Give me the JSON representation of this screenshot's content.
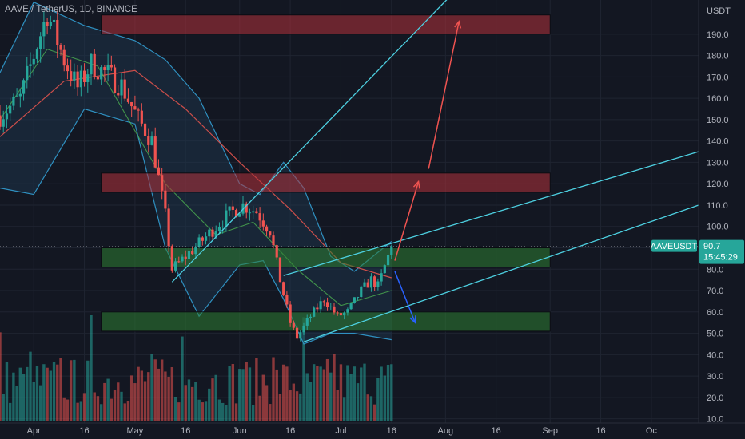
{
  "header": {
    "symbol_title": "AAVE / TetherUS, 1D, BINANCE",
    "currency": "USDT"
  },
  "price_tag": {
    "symbol": "AAVEUSDT",
    "price": "90.7",
    "countdown": "15:45:29"
  },
  "colors": {
    "background": "#131722",
    "up": "#26a69a",
    "down": "#ef5350",
    "bb_band": "#2f90c0",
    "bb_fill": "#1e3a52",
    "ma_red": "#e0534c",
    "ma_green": "#4caf50",
    "zone_red": "#b2313a",
    "zone_green": "#2e7d32",
    "trendline": "#4dd0e1",
    "arrow_up": "#ef5350",
    "arrow_down": "#2962ff",
    "price_tag_bg": "#26a69a"
  },
  "chart_data": {
    "type": "candlestick",
    "title": "AAVE / TetherUS, 1D, BINANCE",
    "ylabel": "USDT",
    "ylim": [
      8,
      206
    ],
    "y_ticks": [
      10.0,
      20.0,
      30.0,
      40.0,
      50.0,
      60.0,
      70.0,
      80.0,
      90.0,
      100.0,
      110.0,
      120.0,
      130.0,
      140.0,
      150.0,
      160.0,
      170.0,
      180.0,
      190.0
    ],
    "y_tick_labels": [
      "10.0",
      "20.0",
      "30.0",
      "40.0",
      "50.0",
      "60.0",
      "70.0",
      "80.0",
      "90.0",
      "100.0",
      "110.0",
      "120.0",
      "130.0",
      "140.0",
      "150.0",
      "160.0",
      "170.0",
      "180.0",
      "190.0"
    ],
    "x_start": "2022-03-22",
    "x_end": "2022-10-15",
    "x_ticks": [
      {
        "label": "Apr",
        "date": "2022-04-01"
      },
      {
        "label": "16",
        "date": "2022-04-16"
      },
      {
        "label": "May",
        "date": "2022-05-01"
      },
      {
        "label": "16",
        "date": "2022-05-16"
      },
      {
        "label": "Jun",
        "date": "2022-06-01"
      },
      {
        "label": "16",
        "date": "2022-06-16"
      },
      {
        "label": "Jul",
        "date": "2022-07-01"
      },
      {
        "label": "16",
        "date": "2022-07-16"
      },
      {
        "label": "Aug",
        "date": "2022-08-01"
      },
      {
        "label": "16",
        "date": "2022-08-16"
      },
      {
        "label": "Sep",
        "date": "2022-09-01"
      },
      {
        "label": "16",
        "date": "2022-09-16"
      },
      {
        "label": "Oc",
        "date": "2022-10-01"
      }
    ],
    "last_price": 90.7,
    "price_path": [
      {
        "date": "2022-03-22",
        "close": 152
      },
      {
        "date": "2022-03-28",
        "close": 160
      },
      {
        "date": "2022-04-02",
        "close": 185
      },
      {
        "date": "2022-04-05",
        "close": 200
      },
      {
        "date": "2022-04-10",
        "close": 178
      },
      {
        "date": "2022-04-14",
        "close": 165
      },
      {
        "date": "2022-04-18",
        "close": 176
      },
      {
        "date": "2022-04-22",
        "close": 172
      },
      {
        "date": "2022-04-27",
        "close": 166
      },
      {
        "date": "2022-05-02",
        "close": 150
      },
      {
        "date": "2022-05-06",
        "close": 140
      },
      {
        "date": "2022-05-10",
        "close": 105
      },
      {
        "date": "2022-05-12",
        "close": 80
      },
      {
        "date": "2022-05-16",
        "close": 86
      },
      {
        "date": "2022-05-20",
        "close": 92
      },
      {
        "date": "2022-05-25",
        "close": 100
      },
      {
        "date": "2022-05-29",
        "close": 106
      },
      {
        "date": "2022-06-02",
        "close": 110
      },
      {
        "date": "2022-06-06",
        "close": 107
      },
      {
        "date": "2022-06-10",
        "close": 98
      },
      {
        "date": "2022-06-13",
        "close": 75
      },
      {
        "date": "2022-06-16",
        "close": 55
      },
      {
        "date": "2022-06-18",
        "close": 48
      },
      {
        "date": "2022-06-22",
        "close": 58
      },
      {
        "date": "2022-06-26",
        "close": 66
      },
      {
        "date": "2022-06-30",
        "close": 58
      },
      {
        "date": "2022-07-03",
        "close": 60
      },
      {
        "date": "2022-07-07",
        "close": 70
      },
      {
        "date": "2022-07-10",
        "close": 75
      },
      {
        "date": "2022-07-12",
        "close": 72
      },
      {
        "date": "2022-07-16",
        "close": 90.7
      }
    ],
    "bollinger_upper": [
      {
        "date": "2022-03-22",
        "value": 172
      },
      {
        "date": "2022-04-01",
        "value": 205
      },
      {
        "date": "2022-04-16",
        "value": 194
      },
      {
        "date": "2022-05-01",
        "value": 187
      },
      {
        "date": "2022-05-10",
        "value": 178
      },
      {
        "date": "2022-05-20",
        "value": 160
      },
      {
        "date": "2022-06-01",
        "value": 120
      },
      {
        "date": "2022-06-07",
        "value": 115
      },
      {
        "date": "2022-06-14",
        "value": 130
      },
      {
        "date": "2022-06-20",
        "value": 118
      },
      {
        "date": "2022-06-28",
        "value": 86
      },
      {
        "date": "2022-07-05",
        "value": 79
      },
      {
        "date": "2022-07-16",
        "value": 93
      }
    ],
    "bollinger_lower": [
      {
        "date": "2022-03-22",
        "value": 118
      },
      {
        "date": "2022-04-01",
        "value": 115
      },
      {
        "date": "2022-04-16",
        "value": 155
      },
      {
        "date": "2022-05-01",
        "value": 148
      },
      {
        "date": "2022-05-10",
        "value": 90
      },
      {
        "date": "2022-05-20",
        "value": 58
      },
      {
        "date": "2022-06-01",
        "value": 82
      },
      {
        "date": "2022-06-08",
        "value": 84
      },
      {
        "date": "2022-06-14",
        "value": 66
      },
      {
        "date": "2022-06-20",
        "value": 45
      },
      {
        "date": "2022-06-28",
        "value": 50
      },
      {
        "date": "2022-07-05",
        "value": 50
      },
      {
        "date": "2022-07-16",
        "value": 47
      }
    ],
    "ma_red": [
      {
        "date": "2022-03-22",
        "value": 142
      },
      {
        "date": "2022-04-10",
        "value": 168
      },
      {
        "date": "2022-05-01",
        "value": 173
      },
      {
        "date": "2022-05-16",
        "value": 155
      },
      {
        "date": "2022-06-01",
        "value": 130
      },
      {
        "date": "2022-06-16",
        "value": 108
      },
      {
        "date": "2022-07-01",
        "value": 83
      },
      {
        "date": "2022-07-16",
        "value": 76
      }
    ],
    "ma_green": [
      {
        "date": "2022-03-22",
        "value": 150
      },
      {
        "date": "2022-04-05",
        "value": 183
      },
      {
        "date": "2022-04-20",
        "value": 175
      },
      {
        "date": "2022-05-10",
        "value": 120
      },
      {
        "date": "2022-05-25",
        "value": 96
      },
      {
        "date": "2022-06-05",
        "value": 102
      },
      {
        "date": "2022-06-18",
        "value": 80
      },
      {
        "date": "2022-07-01",
        "value": 63
      },
      {
        "date": "2022-07-16",
        "value": 70
      }
    ],
    "zones": [
      {
        "name": "resistance-top",
        "kind": "red",
        "from": "2022-04-21",
        "to": "2022-09-01",
        "low": 190,
        "high": 199
      },
      {
        "name": "resistance-mid",
        "kind": "red",
        "from": "2022-04-21",
        "to": "2022-09-01",
        "low": 116,
        "high": 125
      },
      {
        "name": "support-upper",
        "kind": "green",
        "from": "2022-04-21",
        "to": "2022-09-01",
        "low": 81,
        "high": 90
      },
      {
        "name": "support-lower",
        "kind": "green",
        "from": "2022-04-21",
        "to": "2022-09-01",
        "low": 51,
        "high": 60
      }
    ],
    "trendlines": [
      {
        "name": "long-uptrend",
        "from": {
          "date": "2022-05-12",
          "price": 74
        },
        "to": {
          "date": "2022-08-13",
          "price": 225
        }
      },
      {
        "name": "channel-upper",
        "from": {
          "date": "2022-06-14",
          "price": 77
        },
        "to": {
          "date": "2022-10-15",
          "price": 135
        }
      },
      {
        "name": "channel-lower",
        "from": {
          "date": "2022-06-20",
          "price": 46
        },
        "to": {
          "date": "2022-10-15",
          "price": 110
        }
      }
    ],
    "projections": [
      {
        "name": "bull-arrow-1",
        "color": "red",
        "from": {
          "date": "2022-07-17",
          "price": 84
        },
        "to": {
          "date": "2022-07-24",
          "price": 121
        }
      },
      {
        "name": "bull-arrow-2",
        "color": "red",
        "from": {
          "date": "2022-07-27",
          "price": 127
        },
        "to": {
          "date": "2022-08-05",
          "price": 196
        }
      },
      {
        "name": "bear-arrow",
        "color": "blue",
        "from": {
          "date": "2022-07-17",
          "price": 79
        },
        "to": {
          "date": "2022-07-23",
          "price": 55
        }
      }
    ]
  }
}
